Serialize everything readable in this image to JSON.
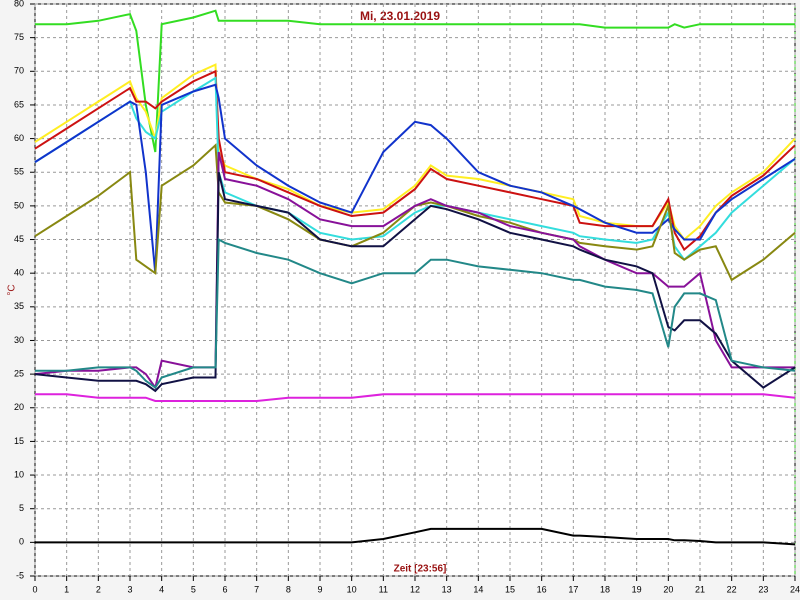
{
  "chart_data": {
    "type": "line",
    "title": "Mi, 23.01.2019",
    "x_label": "Zeit [23:56]",
    "y_label": "°C",
    "x": [
      0,
      1,
      2,
      3,
      3.2,
      3.5,
      3.8,
      4,
      5,
      5.7,
      5.8,
      6,
      7,
      8,
      9,
      10,
      11,
      12,
      12.5,
      13,
      14,
      15,
      16,
      17,
      17.2,
      18,
      19,
      19.5,
      20,
      20.2,
      20.5,
      21,
      21.5,
      22,
      23,
      24
    ],
    "series": [
      {
        "color": "#33dd22",
        "values": [
          77,
          77,
          77.5,
          78.5,
          76,
          65,
          58,
          77,
          78,
          79,
          77.5,
          77.5,
          77.5,
          77.5,
          77,
          77,
          77,
          77,
          77,
          77,
          77,
          77,
          77,
          77,
          77,
          76.5,
          76.5,
          76.5,
          76.5,
          77,
          76.5,
          77,
          77,
          77,
          77,
          77
        ]
      },
      {
        "color": "#ffee22",
        "values": [
          59.5,
          62.5,
          65.5,
          68.5,
          66,
          64,
          60,
          66,
          69.5,
          71,
          58,
          56,
          54,
          52.5,
          50,
          49,
          49.5,
          53,
          56,
          54.5,
          54,
          53,
          52,
          51,
          48.5,
          47.5,
          47,
          47,
          50.5,
          47,
          45,
          47,
          50,
          52,
          55,
          60
        ]
      },
      {
        "color": "#cc1111",
        "values": [
          58.5,
          61.5,
          64.5,
          67.5,
          65.5,
          65.5,
          64.5,
          65.5,
          68.5,
          70,
          60,
          55,
          54,
          52,
          50,
          48.5,
          49,
          52.5,
          55.5,
          54,
          53,
          52,
          51,
          50,
          47.5,
          47,
          47,
          47,
          51,
          46,
          43.5,
          45.5,
          49,
          51.5,
          54.5,
          59
        ]
      },
      {
        "color": "#33dddd",
        "values": [
          56.5,
          59.5,
          62.5,
          65.5,
          63,
          61,
          60,
          64,
          67,
          69,
          55,
          52,
          50,
          49,
          46,
          45,
          45.5,
          49,
          50,
          50,
          49,
          48,
          47,
          46,
          45.5,
          45,
          44.5,
          45,
          49,
          44,
          42,
          44,
          46,
          49,
          53,
          57
        ]
      },
      {
        "color": "#1133cc",
        "values": [
          56.5,
          59.5,
          62.5,
          65.5,
          65,
          55,
          40,
          65,
          67,
          68,
          66,
          60,
          56,
          53,
          50.5,
          49,
          58,
          62.5,
          62,
          60,
          55,
          53,
          52,
          50,
          49.5,
          47.5,
          46,
          46,
          48,
          46.5,
          45,
          45,
          49,
          51,
          54,
          57
        ]
      },
      {
        "color": "#888811",
        "values": [
          45.5,
          48.5,
          51.5,
          55,
          42,
          41,
          40,
          53,
          56,
          59,
          52,
          50.5,
          50,
          48,
          45,
          44,
          46,
          50,
          50.5,
          50,
          48.5,
          47.5,
          46,
          45,
          44.5,
          44,
          43.5,
          44,
          50,
          43,
          42,
          43.5,
          44,
          39,
          42,
          46
        ]
      },
      {
        "color": "#881199",
        "values": [
          25,
          25.5,
          25.5,
          26,
          26,
          25,
          23,
          27,
          26,
          26,
          58,
          54,
          53,
          51,
          48,
          47,
          47,
          50,
          51,
          50,
          49,
          47,
          46,
          45,
          44,
          42,
          40,
          40,
          38,
          38,
          38,
          40,
          30,
          26,
          26,
          26
        ]
      },
      {
        "color": "#111144",
        "values": [
          25,
          24.5,
          24,
          24,
          24,
          23.5,
          22.5,
          23.5,
          24.5,
          24.5,
          55,
          51,
          50,
          49,
          45,
          44,
          44,
          48,
          50,
          49.5,
          48,
          46,
          45,
          44,
          43.5,
          42,
          41,
          40,
          32,
          31.5,
          33,
          33,
          31,
          27,
          23,
          26
        ]
      },
      {
        "color": "#228888",
        "values": [
          25.5,
          25.5,
          26,
          26,
          25.5,
          24,
          23,
          24.5,
          26,
          26,
          45,
          44.5,
          43,
          42,
          40,
          38.5,
          40,
          40,
          42,
          42,
          41,
          40.5,
          40,
          39,
          39,
          38,
          37.5,
          37,
          29,
          35,
          37,
          37,
          36,
          27,
          26,
          25.5
        ]
      },
      {
        "color": "#dd22dd",
        "values": [
          22,
          22,
          21.5,
          21.5,
          21.5,
          21.5,
          21,
          21,
          21,
          21,
          21,
          21,
          21,
          21.5,
          21.5,
          21.5,
          22,
          22,
          22,
          22,
          22,
          22,
          22,
          22,
          22,
          22,
          22,
          22,
          22,
          22,
          22,
          22,
          22,
          22,
          22,
          21.5
        ]
      },
      {
        "color": "#000000",
        "values": [
          0,
          0,
          0,
          0,
          0,
          0,
          0,
          0,
          0,
          0,
          0,
          0,
          0,
          0,
          0,
          0,
          0.5,
          1.5,
          2,
          2,
          2,
          2,
          2,
          1,
          1,
          0.8,
          0.5,
          0.5,
          0.5,
          0.3,
          0.3,
          0.2,
          0,
          0,
          0,
          -0.3
        ]
      }
    ],
    "xlim": [
      0,
      24
    ],
    "xticks": [
      0,
      1,
      2,
      3,
      4,
      5,
      6,
      7,
      8,
      9,
      10,
      11,
      12,
      13,
      14,
      15,
      16,
      17,
      18,
      19,
      20,
      21,
      22,
      23,
      24
    ],
    "ylim": [
      -5,
      80
    ],
    "yticks": [
      -5,
      0,
      5,
      10,
      15,
      20,
      25,
      30,
      35,
      40,
      45,
      50,
      55,
      60,
      65,
      70,
      75,
      80
    ],
    "grid": true
  }
}
